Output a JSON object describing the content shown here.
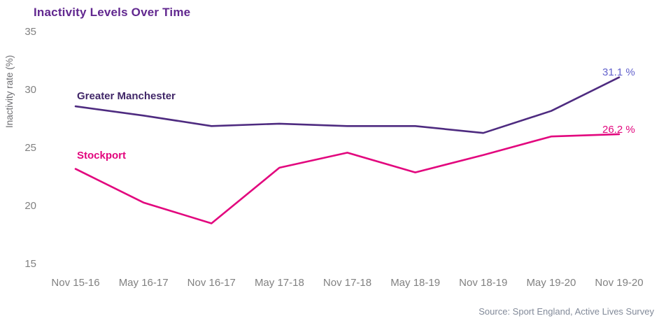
{
  "chart_data": {
    "type": "line",
    "title": "Inactivity Levels Over Time",
    "ylabel": "Inactivity rate (%)",
    "xlabel": "",
    "categories": [
      "Nov 15-16",
      "May 16-17",
      "Nov 16-17",
      "May 17-18",
      "Nov 17-18",
      "May 18-19",
      "Nov 18-19",
      "May 19-20",
      "Nov 19-20"
    ],
    "yticks": [
      35,
      30,
      25,
      20,
      15
    ],
    "ylim": [
      15,
      35
    ],
    "grid": false,
    "legend_position": "inline-labels-on-lines",
    "series": [
      {
        "name": "Greater Manchester",
        "color": "#4e2b80",
        "label_color": "#412768",
        "end_label": "31.1 %",
        "end_label_color": "#6362cc",
        "values": [
          28.6,
          27.8,
          26.9,
          27.1,
          26.9,
          26.9,
          26.3,
          28.2,
          31.1
        ]
      },
      {
        "name": "Stockport",
        "color": "#e2077e",
        "label_color": "#e2077e",
        "end_label": "26.2 %",
        "end_label_color": "#e2077e",
        "values": [
          23.2,
          20.3,
          18.5,
          23.3,
          24.6,
          22.9,
          24.4,
          26.0,
          26.2
        ]
      }
    ],
    "source": "Source: Sport England, Active Lives Survey"
  }
}
